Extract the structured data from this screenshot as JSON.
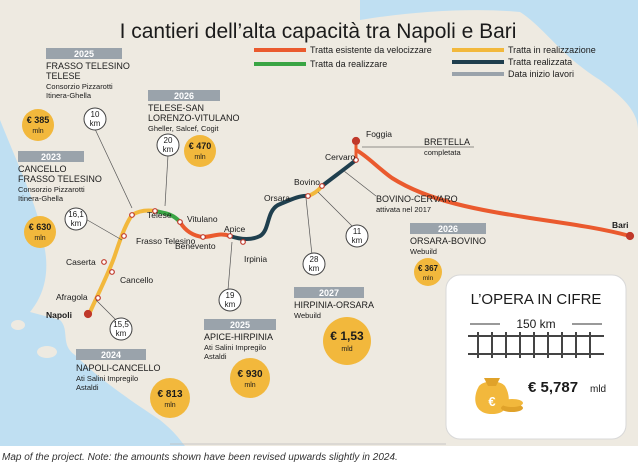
{
  "title": "I cantieri dell’alta capacità tra Napoli e Bari",
  "legend": [
    {
      "label": "Tratta esistente da velocizzare",
      "color": "#ea5a2e"
    },
    {
      "label": "Tratta da realizzare",
      "color": "#3aa544"
    },
    {
      "label": "Tratta in realizzazione",
      "color": "#f2b83c"
    },
    {
      "label": "Tratta realizzata",
      "color": "#1f3f4e"
    },
    {
      "label": "Data inizio lavori",
      "color": "#9aa3ab"
    }
  ],
  "stations": [
    "Napoli",
    "Afragola",
    "Caserta",
    "Cancello",
    "Frasso Telesino",
    "Telese",
    "Vitulano",
    "Benevento",
    "Apice",
    "Irpinia",
    "Orsara",
    "Bovino",
    "Cervaro",
    "Foggia",
    "Bari"
  ],
  "bretella": {
    "name": "BRETELLA",
    "status": "completata"
  },
  "lots": [
    {
      "year": "2025",
      "name1": "FRASSO TELESINO",
      "name2": "TELESE",
      "contractor1": "Consorzio Pizzarotti",
      "contractor2": "Itinera-Ghella",
      "cost": "385",
      "length": "10"
    },
    {
      "year": "2026",
      "name1": "TELESE-SAN",
      "name2": "LORENZO-VITULANO",
      "contractor1": "Gheller, Salcef, Cogit",
      "cost": "470",
      "length": "20"
    },
    {
      "year": "2023",
      "name1": "CANCELLO",
      "name2": "FRASSO TELESINO",
      "contractor1": "Consorzio Pizzarotti",
      "contractor2": "Itinera-Ghella",
      "cost": "630",
      "length": "16,1"
    },
    {
      "year": "2024",
      "name1": "NAPOLI-CANCELLO",
      "contractor1": "Ati Salini Impregilo",
      "contractor2": "Astaldi",
      "cost": "813",
      "length": "15,5"
    },
    {
      "year": "2025",
      "name1": "APICE-HIRPINIA",
      "contractor1": "Ati Salini Impregilo",
      "contractor2": "Astaldi",
      "cost": "930",
      "length": "19"
    },
    {
      "year": "2027",
      "name1": "HIRPINIA-ORSARA",
      "contractor1": "Webuild",
      "cost": "1,53",
      "length": "28"
    },
    {
      "year": "2026",
      "name1": "ORSARA-BOVINO",
      "contractor1": "Webuild",
      "cost": "367",
      "length": "11"
    },
    {
      "name1": "BOVINO-CERVARO",
      "contractor1": "attivata nel 2017"
    }
  ],
  "currency": "€",
  "unit_mln": "mln",
  "unit_mld": "mld",
  "unit_km": "km",
  "summary": {
    "title": "L’OPERA IN CIFRE",
    "length": "150 km",
    "cost": "€ 5,787",
    "unit": "mld"
  },
  "caption": "Map of the project. Note: the amounts shown have been revised upwards slightly in 2024."
}
